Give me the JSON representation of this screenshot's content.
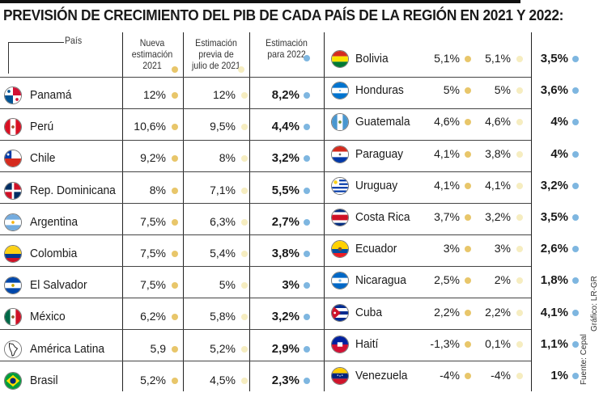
{
  "title": "PREVISIÓN DE CRECIMIENTO DEL PIB DE CADA PAÍS DE LA REGIÓN EN 2021 Y 2022:",
  "headers": {
    "pais": "País",
    "col1": "Nueva estimación 2021",
    "col1_lines": [
      "Nueva",
      "estimación",
      "2021"
    ],
    "col2": "Estimación previa de julio de 2021",
    "col2_lines": [
      "Estimación",
      "previa de",
      "julio de 2021"
    ],
    "col3": "Estimación para 2022",
    "col3_lines": [
      "Estimación",
      "para 2022"
    ]
  },
  "colors": {
    "col1_dot": "#e8c66a",
    "col2_dot": "#f6edc0",
    "col3_dot": "#7eb6e0"
  },
  "chart_data": {
    "type": "table",
    "title": "PREVISIÓN DE CRECIMIENTO DEL PIB DE CADA PAÍS DE LA REGIÓN EN 2021 Y 2022:",
    "columns": [
      "País",
      "Nueva estimación 2021",
      "Estimación previa de julio de 2021",
      "Estimación para 2022"
    ],
    "left": [
      {
        "country": "Panamá",
        "flag": "panama-flag-icon",
        "c1": "12%",
        "c2": "12%",
        "c3": "8,2%"
      },
      {
        "country": "Perú",
        "flag": "peru-flag-icon",
        "c1": "10,6%",
        "c2": "9,5%",
        "c3": "4,4%"
      },
      {
        "country": "Chile",
        "flag": "chile-flag-icon",
        "c1": "9,2%",
        "c2": "8%",
        "c3": "3,2%"
      },
      {
        "country": "Rep. Dominicana",
        "flag": "dominican-republic-flag-icon",
        "c1": "8%",
        "c2": "7,1%",
        "c3": "5,5%"
      },
      {
        "country": "Argentina",
        "flag": "argentina-flag-icon",
        "c1": "7,5%",
        "c2": "6,3%",
        "c3": "2,7%"
      },
      {
        "country": "Colombia",
        "flag": "colombia-flag-icon",
        "c1": "7,5%",
        "c2": "5,4%",
        "c3": "3,8%"
      },
      {
        "country": "El Salvador",
        "flag": "el-salvador-flag-icon",
        "c1": "7,5%",
        "c2": "5%",
        "c3": "3%"
      },
      {
        "country": "México",
        "flag": "mexico-flag-icon",
        "c1": "6,2%",
        "c2": "5,8%",
        "c3": "3,2%"
      },
      {
        "country": "América Latina",
        "flag": "latin-america-map-icon",
        "c1": "5,9",
        "c2": "5,2%",
        "c3": "2,9%"
      },
      {
        "country": "Brasil",
        "flag": "brazil-flag-icon",
        "c1": "5,2%",
        "c2": "4,5%",
        "c3": "2,3%"
      }
    ],
    "right": [
      {
        "country": "Bolivia",
        "flag": "bolivia-flag-icon",
        "c1": "5,1%",
        "c2": "5,1%",
        "c3": "3,5%"
      },
      {
        "country": "Honduras",
        "flag": "honduras-flag-icon",
        "c1": "5%",
        "c2": "5%",
        "c3": "3,6%"
      },
      {
        "country": "Guatemala",
        "flag": "guatemala-flag-icon",
        "c1": "4,6%",
        "c2": "4,6%",
        "c3": "4%"
      },
      {
        "country": "Paraguay",
        "flag": "paraguay-flag-icon",
        "c1": "4,1%",
        "c2": "3,8%",
        "c3": "4%"
      },
      {
        "country": "Uruguay",
        "flag": "uruguay-flag-icon",
        "c1": "4,1%",
        "c2": "4,1%",
        "c3": "3,2%"
      },
      {
        "country": "Costa Rica",
        "flag": "costa-rica-flag-icon",
        "c1": "3,7%",
        "c2": "3,2%",
        "c3": "3,5%"
      },
      {
        "country": "Ecuador",
        "flag": "ecuador-flag-icon",
        "c1": "3%",
        "c2": "3%",
        "c3": "2,6%"
      },
      {
        "country": "Nicaragua",
        "flag": "nicaragua-flag-icon",
        "c1": "2,5%",
        "c2": "2%",
        "c3": "1,8%"
      },
      {
        "country": "Cuba",
        "flag": "cuba-flag-icon",
        "c1": "2,2%",
        "c2": "2,2%",
        "c3": "4,1%"
      },
      {
        "country": "Haití",
        "flag": "haiti-flag-icon",
        "c1": "-1,3%",
        "c2": "0,1%",
        "c3": "1,1%"
      },
      {
        "country": "Venezuela",
        "flag": "venezuela-flag-icon",
        "c1": "-4%",
        "c2": "-4%",
        "c3": "1%"
      }
    ]
  },
  "credits": {
    "source": "Fuente: Cepal",
    "graphic": "Gráfico: LR-GR"
  }
}
